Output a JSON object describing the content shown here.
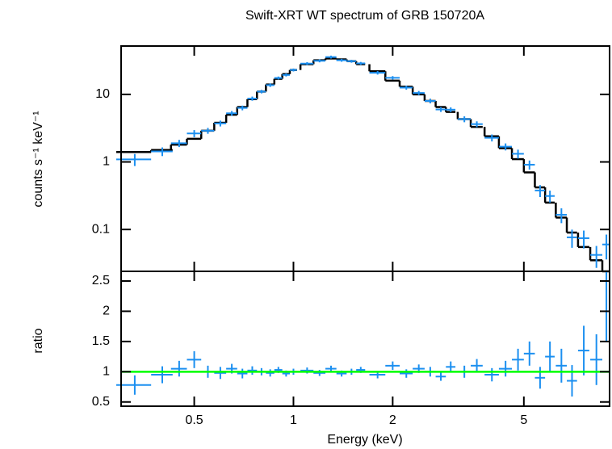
{
  "chart_data": [
    {
      "type": "errorbar",
      "title": "Swift-XRT WT spectrum of GRB 150720A",
      "ylabel": "counts s⁻¹ keV⁻¹",
      "xscale": "log",
      "yscale": "log",
      "xlim": [
        0.3,
        9.1
      ],
      "ylim": [
        0.024,
        52
      ],
      "xticks": [
        0.5,
        1,
        2,
        5
      ],
      "yticks": [
        0.1,
        1,
        10
      ],
      "data": {
        "color": "#1b8ff0",
        "x": [
          0.33,
          0.4,
          0.45,
          0.5,
          0.55,
          0.6,
          0.65,
          0.7,
          0.75,
          0.8,
          0.85,
          0.9,
          0.95,
          1.0,
          1.1,
          1.2,
          1.3,
          1.4,
          1.5,
          1.6,
          1.8,
          2.0,
          2.2,
          2.4,
          2.6,
          2.8,
          3.0,
          3.3,
          3.6,
          4.0,
          4.4,
          4.8,
          5.2,
          5.6,
          6.0,
          6.5,
          7.0,
          7.6,
          8.3,
          8.9
        ],
        "xerr": [
          0.04,
          0.03,
          0.025,
          0.025,
          0.025,
          0.025,
          0.025,
          0.025,
          0.025,
          0.025,
          0.025,
          0.025,
          0.025,
          0.025,
          0.05,
          0.05,
          0.05,
          0.05,
          0.05,
          0.05,
          0.1,
          0.1,
          0.1,
          0.1,
          0.1,
          0.1,
          0.1,
          0.15,
          0.15,
          0.2,
          0.2,
          0.2,
          0.2,
          0.2,
          0.2,
          0.25,
          0.25,
          0.3,
          0.35,
          0.25
        ],
        "y": [
          1.09,
          1.43,
          1.89,
          2.64,
          2.9,
          3.72,
          5.25,
          6.31,
          8.67,
          11,
          13.7,
          17.5,
          19.4,
          23,
          28.6,
          31.4,
          35.7,
          32,
          31,
          28.8,
          20.9,
          17.6,
          12.6,
          10.5,
          8,
          5.98,
          5.94,
          4.3,
          3.63,
          2.28,
          1.68,
          1.32,
          0.91,
          0.378,
          0.313,
          0.165,
          0.0765,
          0.0743,
          0.042,
          0.06
        ],
        "yerr": [
          0.22,
          0.21,
          0.23,
          0.32,
          0.29,
          0.37,
          0.42,
          0.5,
          0.61,
          0.66,
          0.82,
          0.88,
          0.97,
          1.15,
          1.43,
          1.57,
          1.79,
          1.6,
          1.55,
          1.44,
          1.25,
          1.06,
          0.88,
          0.74,
          0.64,
          0.48,
          0.48,
          0.43,
          0.36,
          0.27,
          0.2,
          0.2,
          0.14,
          0.076,
          0.063,
          0.041,
          0.023,
          0.022,
          0.015,
          0.024
        ]
      },
      "model": {
        "color": "#000000",
        "values": [
          1.4,
          1.5,
          1.8,
          2.2,
          2.9,
          3.8,
          5,
          6.5,
          8.5,
          11,
          14,
          17,
          20,
          23,
          28,
          32,
          34,
          33,
          31,
          28,
          22,
          16,
          13,
          10,
          8,
          6.5,
          5.5,
          4.3,
          3.3,
          2.4,
          1.6,
          1.1,
          0.7,
          0.42,
          0.25,
          0.15,
          0.09,
          0.055,
          0.035,
          0.024
        ]
      }
    },
    {
      "type": "errorbar",
      "ylabel": "ratio",
      "xlabel": "Energy (keV)",
      "xscale": "log",
      "yscale": "linear",
      "xlim": [
        0.3,
        9.1
      ],
      "ylim": [
        0.43,
        2.66
      ],
      "xticks": [
        0.5,
        1,
        2,
        5
      ],
      "yticks": [
        0.5,
        1,
        1.5,
        2,
        2.5
      ],
      "data": {
        "color": "#1b8ff0",
        "x": [
          0.33,
          0.4,
          0.45,
          0.5,
          0.55,
          0.6,
          0.65,
          0.7,
          0.75,
          0.8,
          0.85,
          0.9,
          0.95,
          1.0,
          1.1,
          1.2,
          1.3,
          1.4,
          1.5,
          1.6,
          1.8,
          2.0,
          2.2,
          2.4,
          2.6,
          2.8,
          3.0,
          3.3,
          3.6,
          4.0,
          4.4,
          4.8,
          5.2,
          5.6,
          6.0,
          6.5,
          7.0,
          7.6,
          8.3,
          8.9
        ],
        "xerr": [
          0.04,
          0.03,
          0.025,
          0.025,
          0.025,
          0.025,
          0.025,
          0.025,
          0.025,
          0.025,
          0.025,
          0.025,
          0.025,
          0.025,
          0.05,
          0.05,
          0.05,
          0.05,
          0.05,
          0.05,
          0.1,
          0.1,
          0.1,
          0.1,
          0.1,
          0.1,
          0.1,
          0.15,
          0.15,
          0.2,
          0.2,
          0.2,
          0.2,
          0.2,
          0.2,
          0.25,
          0.25,
          0.3,
          0.35,
          0.25
        ],
        "y": [
          0.78,
          0.95,
          1.05,
          1.2,
          1.0,
          0.98,
          1.05,
          0.97,
          1.02,
          1.0,
          0.98,
          1.03,
          0.97,
          1.0,
          1.02,
          0.98,
          1.05,
          0.97,
          1.0,
          1.03,
          0.95,
          1.1,
          0.97,
          1.05,
          1.0,
          0.92,
          1.08,
          1.0,
          1.1,
          0.95,
          1.05,
          1.2,
          1.3,
          0.9,
          1.25,
          1.1,
          0.85,
          1.35,
          1.2,
          2.5
        ],
        "yerr": [
          0.16,
          0.14,
          0.13,
          0.14,
          0.1,
          0.1,
          0.08,
          0.08,
          0.07,
          0.06,
          0.06,
          0.05,
          0.05,
          0.05,
          0.05,
          0.05,
          0.05,
          0.05,
          0.05,
          0.05,
          0.06,
          0.07,
          0.07,
          0.07,
          0.08,
          0.07,
          0.09,
          0.1,
          0.11,
          0.11,
          0.13,
          0.18,
          0.2,
          0.18,
          0.25,
          0.28,
          0.26,
          0.41,
          0.42,
          1.0
        ]
      },
      "reference": {
        "value": 1,
        "color": "#00ff00"
      }
    }
  ]
}
